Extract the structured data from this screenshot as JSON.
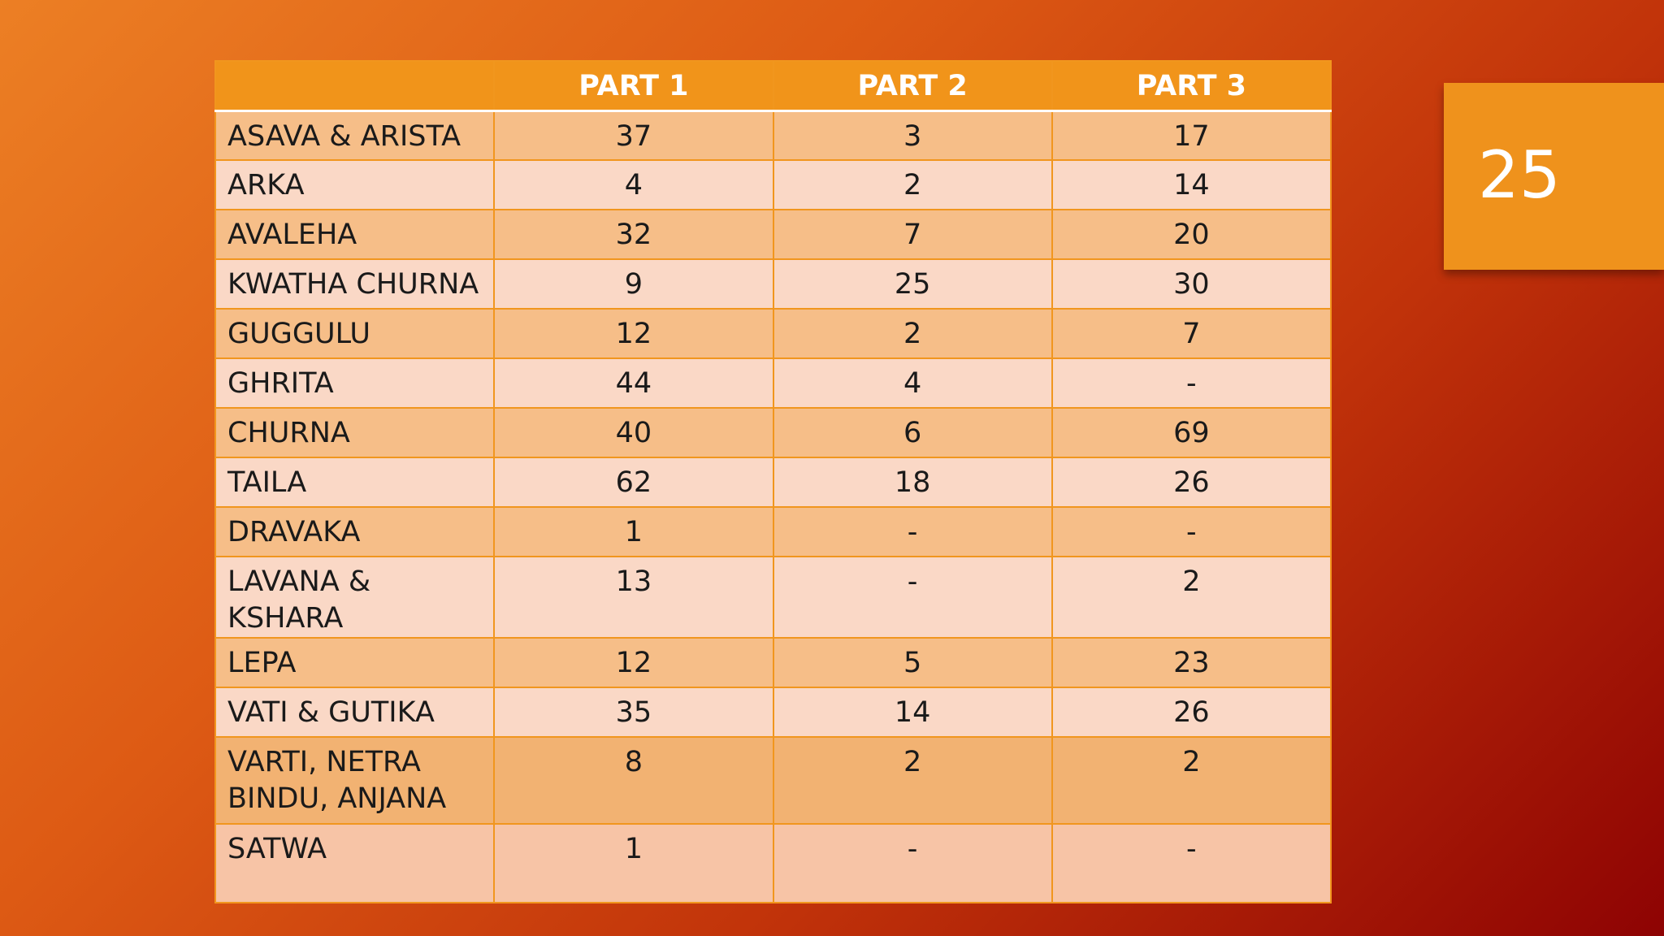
{
  "slide_number": 25,
  "table": {
    "columns": [
      "PART 1",
      "PART 2",
      "PART 3"
    ],
    "rows": [
      [
        "ASAVA & ARISTA",
        37,
        3,
        17
      ],
      [
        "ARKA",
        4,
        2,
        14
      ],
      [
        "AVALEHA",
        32,
        7,
        20
      ],
      [
        "KWATHA CHURNA",
        9,
        25,
        30
      ],
      [
        "GUGGULU",
        12,
        2,
        7
      ],
      [
        "GHRITA",
        44,
        4,
        "-"
      ],
      [
        "CHURNA",
        40,
        6,
        69
      ],
      [
        "TAILA",
        62,
        18,
        26
      ],
      [
        "DRAVAKA",
        1,
        "-",
        "-"
      ],
      [
        "LAVANA & KSHARA",
        13,
        "-",
        2
      ],
      [
        "LEPA",
        12,
        5,
        23
      ],
      [
        "VATI & GUTIKA",
        35,
        14,
        26
      ],
      [
        "VARTI, NETRA BINDU, ANJANA",
        8,
        2,
        2
      ],
      [
        "SATWA",
        1,
        "-",
        "-"
      ]
    ]
  }
}
